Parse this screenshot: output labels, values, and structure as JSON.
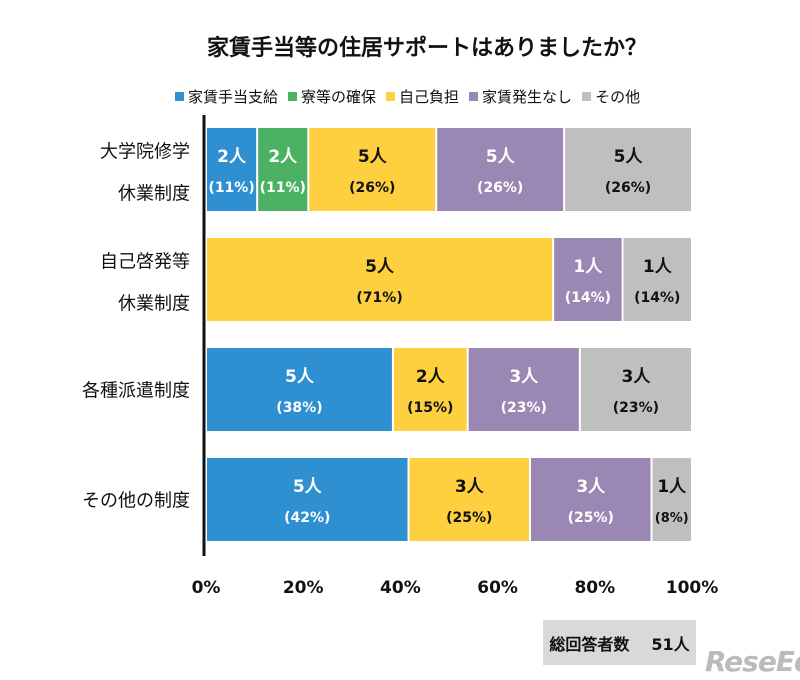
{
  "chart_data": {
    "type": "bar",
    "orientation": "horizontal",
    "stacked": "percent",
    "title": "家賃手当等の住居サポートはありましたか？",
    "categories": [
      [
        "大学院修学",
        "休業制度"
      ],
      [
        "自己啓発等",
        "休業制度"
      ],
      [
        "各種派遣制度"
      ],
      [
        "その他の制度"
      ]
    ],
    "series": [
      {
        "name": "家賃手当支給",
        "color": "#2e8fd1",
        "text_color": "#ffffff",
        "counts": [
          2,
          0,
          5,
          5
        ],
        "percents": [
          11,
          0,
          38,
          42
        ]
      },
      {
        "name": "寮等の確保",
        "color": "#4cb263",
        "text_color": "#ffffff",
        "counts": [
          2,
          0,
          0,
          0
        ],
        "percents": [
          11,
          0,
          0,
          0
        ]
      },
      {
        "name": "自己負担",
        "color": "#fed03f",
        "text_color": "#111111",
        "counts": [
          5,
          5,
          2,
          3
        ],
        "percents": [
          26,
          71,
          15,
          25
        ]
      },
      {
        "name": "家賃発生なし",
        "color": "#9b87b4",
        "text_color": "#ffffff",
        "counts": [
          5,
          1,
          3,
          3
        ],
        "percents": [
          26,
          14,
          23,
          25
        ]
      },
      {
        "name": "その他",
        "color": "#bfbfbf",
        "text_color": "#111111",
        "counts": [
          5,
          1,
          3,
          1
        ],
        "percents": [
          26,
          14,
          23,
          8
        ]
      }
    ],
    "unit_label": "人",
    "xticks": [
      "0%",
      "20%",
      "40%",
      "60%",
      "80%",
      "100%"
    ],
    "xlim": [
      0,
      100
    ],
    "legend_position": "top",
    "grid": false
  },
  "total": {
    "label": "総回答者数",
    "value": "51人"
  },
  "logo": {
    "text": "ReseEd"
  }
}
